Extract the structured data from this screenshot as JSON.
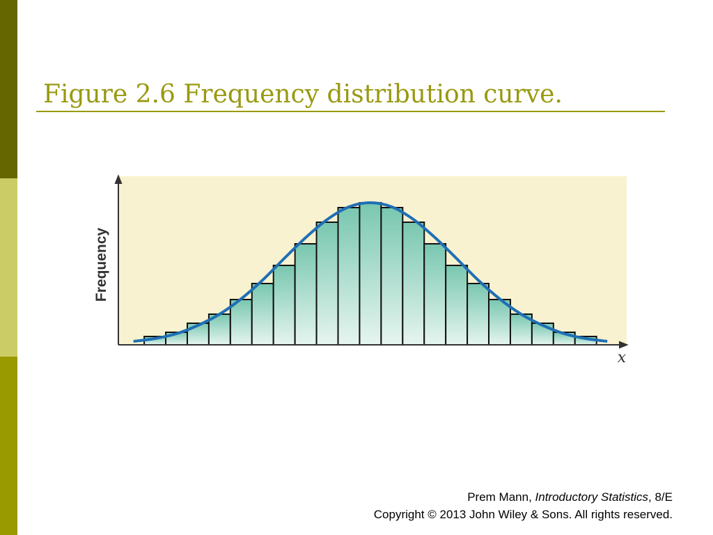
{
  "chart_data": {
    "type": "histogram",
    "title": "Figure 2.6 Frequency distribution curve.",
    "y_label": "Frequency",
    "x_label": "x",
    "bins": [
      0,
      1,
      2,
      3,
      4,
      5,
      6,
      7,
      8,
      9,
      10,
      11,
      12,
      13,
      14,
      15,
      16,
      17,
      18,
      19,
      20,
      21
    ],
    "values": [
      12,
      18,
      31,
      44,
      65,
      88,
      114,
      145,
      176,
      197,
      204,
      197,
      176,
      145,
      114,
      88,
      65,
      44,
      31,
      18,
      12
    ],
    "color": "#79c7b0",
    "background": "#f8f2d0",
    "curve": {
      "x": [
        -0.5,
        0.5,
        1.5,
        2.5,
        3.5,
        4.5,
        5.5,
        6.5,
        7.5,
        8.5,
        9.5,
        10.5,
        11.5,
        12.5,
        13.5,
        14.5,
        15.5,
        16.5,
        17.5,
        18.5,
        19.5,
        20.5,
        21.5
      ],
      "values": [
        5,
        9,
        16,
        28,
        44,
        66,
        93,
        124,
        154,
        180,
        198,
        204,
        198,
        180,
        154,
        124,
        93,
        66,
        44,
        28,
        16,
        9,
        5
      ],
      "color": "#1f6fb5"
    },
    "xlim": [
      -1.2,
      22.4
    ],
    "ylim": [
      0,
      242
    ]
  },
  "footer": {
    "author": "Prem Mann, ",
    "book": "Introductory Statistics",
    "edition": ", 8/E",
    "copyright": "Copyright © 2013 John Wiley & Sons. All rights reserved."
  }
}
